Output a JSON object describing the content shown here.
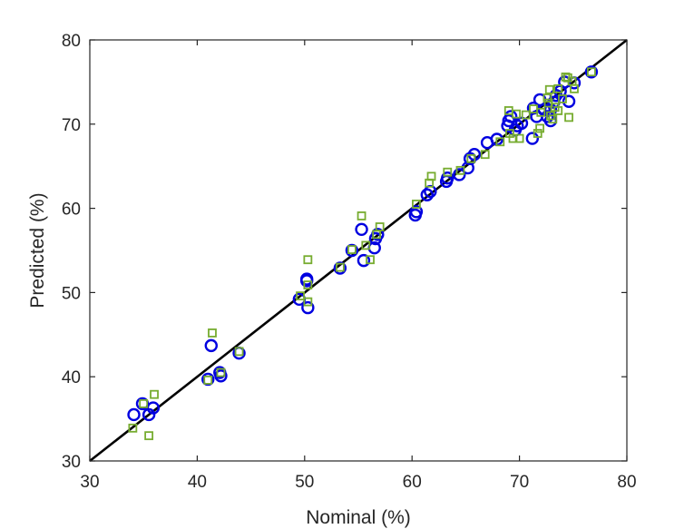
{
  "chart_data": {
    "type": "scatter",
    "title": "",
    "xlabel": "Nominal (%)",
    "ylabel": "Predicted (%)",
    "xlim": [
      30,
      80
    ],
    "ylim": [
      30,
      80
    ],
    "xticks": [
      30,
      40,
      50,
      60,
      70,
      80
    ],
    "yticks": [
      30,
      40,
      50,
      60,
      70,
      80
    ],
    "grid": false,
    "legend": "none",
    "reference_line": {
      "from": [
        30,
        30
      ],
      "to": [
        80,
        80
      ],
      "color": "#000000"
    },
    "series": [
      {
        "marker": "circle",
        "color": "#0000e0",
        "points": [
          [
            34.1,
            35.5
          ],
          [
            34.9,
            36.8
          ],
          [
            35.5,
            35.5
          ],
          [
            35.9,
            36.3
          ],
          [
            41.0,
            39.7
          ],
          [
            41.3,
            43.7
          ],
          [
            42.1,
            40.5
          ],
          [
            42.2,
            40.1
          ],
          [
            43.9,
            42.8
          ],
          [
            49.5,
            49.2
          ],
          [
            50.2,
            51.4
          ],
          [
            50.2,
            51.6
          ],
          [
            50.3,
            48.2
          ],
          [
            53.3,
            52.9
          ],
          [
            54.4,
            55.0
          ],
          [
            55.3,
            57.5
          ],
          [
            55.5,
            53.8
          ],
          [
            56.5,
            55.3
          ],
          [
            56.6,
            56.4
          ],
          [
            56.8,
            56.9
          ],
          [
            60.3,
            59.2
          ],
          [
            60.4,
            59.6
          ],
          [
            61.4,
            61.6
          ],
          [
            61.7,
            62.0
          ],
          [
            63.2,
            63.2
          ],
          [
            63.3,
            63.6
          ],
          [
            64.4,
            64.0
          ],
          [
            65.2,
            64.8
          ],
          [
            65.4,
            65.9
          ],
          [
            65.8,
            66.4
          ],
          [
            67.0,
            67.8
          ],
          [
            67.9,
            68.2
          ],
          [
            68.9,
            69.8
          ],
          [
            69.0,
            70.4
          ],
          [
            69.2,
            70.9
          ],
          [
            69.6,
            69.3
          ],
          [
            69.8,
            69.8
          ],
          [
            70.2,
            70.1
          ],
          [
            71.2,
            68.3
          ],
          [
            71.3,
            71.9
          ],
          [
            71.6,
            70.9
          ],
          [
            71.9,
            72.9
          ],
          [
            72.3,
            71.7
          ],
          [
            72.6,
            70.9
          ],
          [
            72.9,
            70.4
          ],
          [
            72.9,
            71.7
          ],
          [
            73.2,
            72.6
          ],
          [
            73.4,
            73.4
          ],
          [
            73.8,
            73.9
          ],
          [
            74.2,
            75.0
          ],
          [
            74.6,
            72.7
          ],
          [
            75.1,
            74.9
          ],
          [
            76.7,
            76.2
          ]
        ]
      },
      {
        "marker": "square",
        "color": "#77ac30",
        "points": [
          [
            34.0,
            33.9
          ],
          [
            35.0,
            36.8
          ],
          [
            35.5,
            33.0
          ],
          [
            36.0,
            37.9
          ],
          [
            41.0,
            39.6
          ],
          [
            41.4,
            45.2
          ],
          [
            42.2,
            40.5
          ],
          [
            43.9,
            43.0
          ],
          [
            49.6,
            49.6
          ],
          [
            50.3,
            53.9
          ],
          [
            50.3,
            50.9
          ],
          [
            50.3,
            48.9
          ],
          [
            53.3,
            53.0
          ],
          [
            54.4,
            55.1
          ],
          [
            55.3,
            59.1
          ],
          [
            55.7,
            55.6
          ],
          [
            56.1,
            53.9
          ],
          [
            56.7,
            56.9
          ],
          [
            57.0,
            57.8
          ],
          [
            60.4,
            60.5
          ],
          [
            61.6,
            63.0
          ],
          [
            61.8,
            63.8
          ],
          [
            63.3,
            64.3
          ],
          [
            64.5,
            64.5
          ],
          [
            65.5,
            65.9
          ],
          [
            66.8,
            66.4
          ],
          [
            68.2,
            67.9
          ],
          [
            69.0,
            71.6
          ],
          [
            69.1,
            68.9
          ],
          [
            69.4,
            68.3
          ],
          [
            69.7,
            71.2
          ],
          [
            70.0,
            68.3
          ],
          [
            70.6,
            71.1
          ],
          [
            71.3,
            71.8
          ],
          [
            71.7,
            68.9
          ],
          [
            71.9,
            69.5
          ],
          [
            72.0,
            71.4
          ],
          [
            72.6,
            73.1
          ],
          [
            72.7,
            72.5
          ],
          [
            72.8,
            74.1
          ],
          [
            72.9,
            71.0
          ],
          [
            73.1,
            70.6
          ],
          [
            73.3,
            72.0
          ],
          [
            73.6,
            71.6
          ],
          [
            73.6,
            74.2
          ],
          [
            74.0,
            73.0
          ],
          [
            74.3,
            75.6
          ],
          [
            74.5,
            75.5
          ],
          [
            74.6,
            70.8
          ],
          [
            74.9,
            75.1
          ],
          [
            75.1,
            74.2
          ],
          [
            76.7,
            76.2
          ]
        ]
      }
    ]
  }
}
